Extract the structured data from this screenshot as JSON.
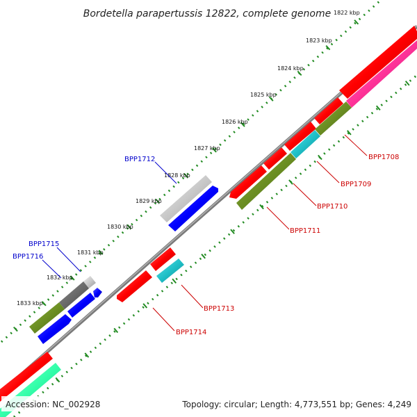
{
  "title": "Bordetella parapertussis 12822, complete genome",
  "footer": {
    "accession": "Accession: NC_002928",
    "summary": "Topology: circular; Length: 4,773,551 bp; Genes: 4,249"
  },
  "scale_ticks": [
    "1822 kbp",
    "1823 kbp",
    "1824 kbp",
    "1825 kbp",
    "1826 kbp",
    "1827 kbp",
    "1828 kbp",
    "1829 kbp",
    "1830 kbp",
    "1831 kbp",
    "1832 kbp",
    "1833 kbp"
  ],
  "gene_labels": [
    {
      "text": "BPP1708",
      "color": "#cc0000"
    },
    {
      "text": "BPP1709",
      "color": "#cc0000"
    },
    {
      "text": "BPP1710",
      "color": "#cc0000"
    },
    {
      "text": "BPP1711",
      "color": "#cc0000"
    },
    {
      "text": "BPP1712",
      "color": "#0000cc"
    },
    {
      "text": "BPP1713",
      "color": "#cc0000"
    },
    {
      "text": "BPP1714",
      "color": "#cc0000"
    },
    {
      "text": "BPP1715",
      "color": "#0000cc"
    },
    {
      "text": "BPP1716",
      "color": "#0000cc"
    }
  ],
  "colors": {
    "cds_red": "#ff0000",
    "cds_blue": "#0000ff",
    "olive": "#6b8e23",
    "cyan": "#1fc0c8",
    "magenta": "#ff3399",
    "gray_light": "#c8c8c8",
    "gray_dark": "#6a6a6a",
    "mint": "#33ffaa",
    "backbone": "#808080",
    "tick_green": "#228b22"
  }
}
